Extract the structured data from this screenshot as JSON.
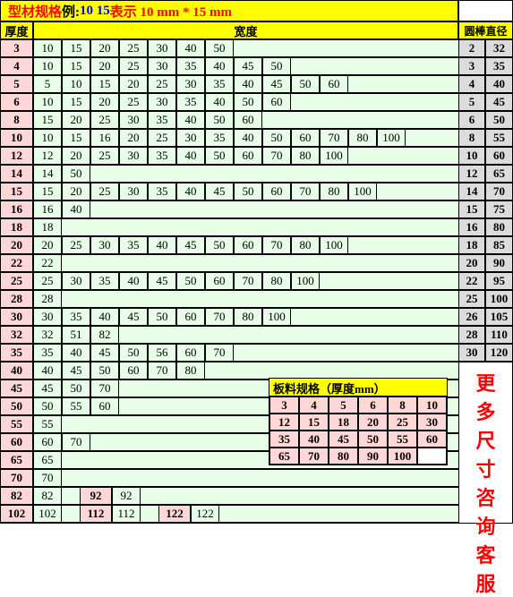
{
  "title": {
    "p1": "型材规格",
    "p2": " 例:",
    "p3": "10 15",
    "p4": " 表示 10 mm * 15 mm"
  },
  "headers": {
    "thick": "厚度",
    "width": "宽度",
    "rod": "圆棒直径"
  },
  "rows": [
    {
      "t": "3",
      "w": [
        "10",
        "15",
        "20",
        "25",
        "30",
        "40",
        "50"
      ],
      "r": [
        "2",
        "32"
      ]
    },
    {
      "t": "4",
      "w": [
        "10",
        "15",
        "20",
        "25",
        "30",
        "35",
        "40",
        "45",
        "50"
      ],
      "r": [
        "3",
        "35"
      ]
    },
    {
      "t": "5",
      "w": [
        "5",
        "10",
        "15",
        "20",
        "25",
        "30",
        "35",
        "40",
        "45",
        "50",
        "60"
      ],
      "r": [
        "4",
        "40"
      ]
    },
    {
      "t": "6",
      "w": [
        "10",
        "15",
        "20",
        "25",
        "30",
        "35",
        "40",
        "50",
        "60"
      ],
      "r": [
        "5",
        "45"
      ]
    },
    {
      "t": "8",
      "w": [
        "15",
        "20",
        "25",
        "30",
        "35",
        "40",
        "50",
        "60"
      ],
      "r": [
        "6",
        "50"
      ]
    },
    {
      "t": "10",
      "w": [
        "10",
        "15",
        "16",
        "20",
        "25",
        "30",
        "35",
        "40",
        "50",
        "60",
        "70",
        "80",
        "100"
      ],
      "r": [
        "8",
        "55"
      ]
    },
    {
      "t": "12",
      "w": [
        "12",
        "20",
        "25",
        "30",
        "35",
        "40",
        "50",
        "60",
        "70",
        "80",
        "100"
      ],
      "r": [
        "10",
        "60"
      ]
    },
    {
      "t": "14",
      "w": [
        "14",
        "50"
      ],
      "r": [
        "12",
        "65"
      ]
    },
    {
      "t": "15",
      "w": [
        "15",
        "20",
        "25",
        "30",
        "35",
        "40",
        "45",
        "50",
        "60",
        "70",
        "80",
        "100"
      ],
      "r": [
        "14",
        "70"
      ]
    },
    {
      "t": "16",
      "w": [
        "16",
        "40"
      ],
      "r": [
        "15",
        "75"
      ]
    },
    {
      "t": "18",
      "w": [
        "18"
      ],
      "r": [
        "16",
        "80"
      ]
    },
    {
      "t": "20",
      "w": [
        "20",
        "25",
        "30",
        "35",
        "40",
        "45",
        "50",
        "60",
        "70",
        "80",
        "100"
      ],
      "r": [
        "18",
        "85"
      ]
    },
    {
      "t": "22",
      "w": [
        "22"
      ],
      "r": [
        "20",
        "90"
      ]
    },
    {
      "t": "25",
      "w": [
        "25",
        "30",
        "35",
        "40",
        "45",
        "50",
        "60",
        "70",
        "80",
        "100"
      ],
      "r": [
        "22",
        "95"
      ]
    },
    {
      "t": "28",
      "w": [
        "28"
      ],
      "r": [
        "25",
        "100"
      ]
    },
    {
      "t": "30",
      "w": [
        "30",
        "35",
        "40",
        "45",
        "50",
        "60",
        "70",
        "80",
        "100"
      ],
      "r": [
        "26",
        "105"
      ]
    },
    {
      "t": "32",
      "w": [
        "32",
        "51",
        "82"
      ],
      "r": [
        "28",
        "110"
      ]
    },
    {
      "t": "35",
      "w": [
        "35",
        "40",
        "45",
        "50",
        "56",
        "60",
        "70"
      ],
      "r": [
        "30",
        "120"
      ]
    },
    {
      "t": "40",
      "w": [
        "40",
        "45",
        "50",
        "60",
        "70",
        "80"
      ],
      "r": null
    },
    {
      "t": "45",
      "w": [
        "45",
        "50",
        "70"
      ],
      "r": null
    },
    {
      "t": "50",
      "w": [
        "50",
        "55",
        "60"
      ],
      "r": null
    },
    {
      "t": "55",
      "w": [
        "55"
      ],
      "r": null
    },
    {
      "t": "60",
      "w": [
        "60",
        "70"
      ],
      "r": null
    },
    {
      "t": "65",
      "w": [
        "65"
      ],
      "r": null
    },
    {
      "t": "70",
      "w": [
        "70"
      ],
      "r": null
    },
    {
      "t": "82",
      "w": [
        "82"
      ],
      "extra": [
        {
          "t": "92",
          "w": "92"
        }
      ],
      "r": null
    },
    {
      "t": "102",
      "w": [
        "102"
      ],
      "extra": [
        {
          "t": "112",
          "w": "112"
        },
        {
          "t": "122",
          "w": "122"
        }
      ],
      "r": null
    }
  ],
  "more": [
    "更",
    "多",
    "尺",
    "寸",
    "咨",
    "询",
    "客",
    "服"
  ],
  "plate": {
    "title": "板料规格（厚度mm）",
    "rows": [
      [
        "3",
        "4",
        "5",
        "6",
        "8",
        "10"
      ],
      [
        "12",
        "15",
        "18",
        "20",
        "25",
        "30"
      ],
      [
        "35",
        "40",
        "45",
        "50",
        "55",
        "60"
      ],
      [
        "65",
        "70",
        "80",
        "90",
        "100",
        ""
      ]
    ]
  },
  "colors": {
    "yellow": "#ffff00",
    "pink": "#ffd7d7",
    "green": "#e6ffe6",
    "gray": "#dcdcdc",
    "red": "#ff0000",
    "blue": "#0000ff"
  }
}
